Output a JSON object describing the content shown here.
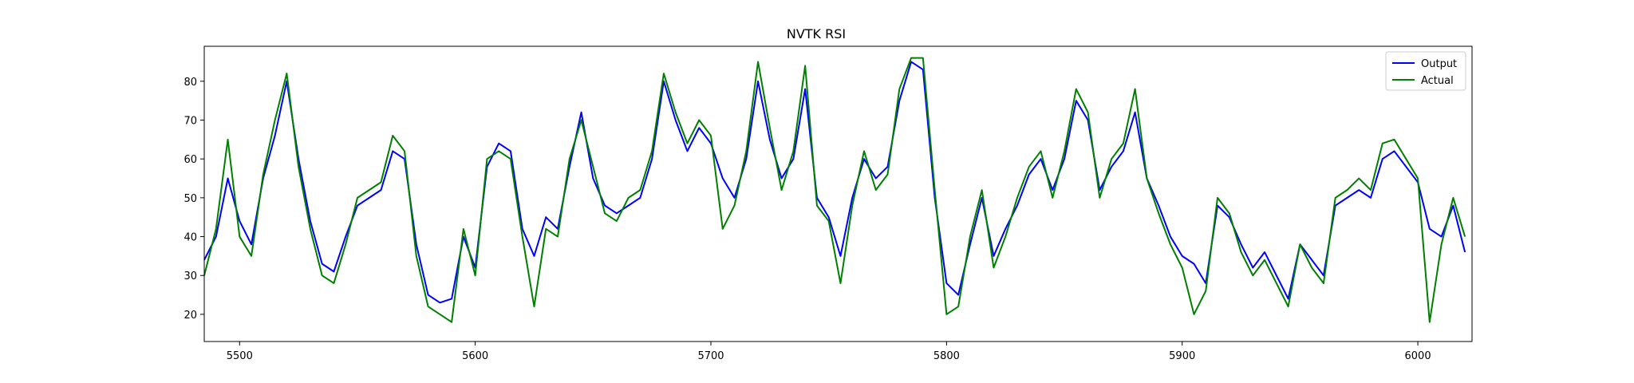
{
  "chart_data": {
    "type": "line",
    "title": "NVTK RSI",
    "xlabel": "",
    "ylabel": "",
    "xlim": [
      5485,
      6023
    ],
    "ylim": [
      13,
      89
    ],
    "xticks": [
      5500,
      5600,
      5700,
      5800,
      5900,
      6000
    ],
    "yticks": [
      20,
      30,
      40,
      50,
      60,
      70,
      80
    ],
    "grid": false,
    "legend_position": "top-right",
    "x": [
      5485,
      5490,
      5495,
      5500,
      5505,
      5510,
      5515,
      5520,
      5525,
      5530,
      5535,
      5540,
      5545,
      5550,
      5555,
      5560,
      5565,
      5570,
      5575,
      5580,
      5585,
      5590,
      5595,
      5600,
      5605,
      5610,
      5615,
      5620,
      5625,
      5630,
      5635,
      5640,
      5645,
      5650,
      5655,
      5660,
      5665,
      5670,
      5675,
      5680,
      5685,
      5690,
      5695,
      5700,
      5705,
      5710,
      5715,
      5720,
      5725,
      5730,
      5735,
      5740,
      5745,
      5750,
      5755,
      5760,
      5765,
      5770,
      5775,
      5780,
      5785,
      5790,
      5795,
      5800,
      5805,
      5810,
      5815,
      5820,
      5825,
      5830,
      5835,
      5840,
      5845,
      5850,
      5855,
      5860,
      5865,
      5870,
      5875,
      5880,
      5885,
      5890,
      5895,
      5900,
      5905,
      5910,
      5915,
      5920,
      5925,
      5930,
      5935,
      5940,
      5945,
      5950,
      5955,
      5960,
      5965,
      5970,
      5975,
      5980,
      5985,
      5990,
      5995,
      6000,
      6005,
      6010,
      6015,
      6020
    ],
    "series": [
      {
        "name": "Output",
        "color": "#0000ff",
        "values": [
          34,
          40,
          55,
          44,
          38,
          55,
          66,
          80,
          60,
          44,
          33,
          31,
          40,
          48,
          50,
          52,
          62,
          60,
          38,
          25,
          23,
          24,
          40,
          32,
          58,
          64,
          62,
          42,
          35,
          45,
          42,
          58,
          72,
          55,
          48,
          46,
          48,
          50,
          60,
          80,
          70,
          62,
          68,
          64,
          55,
          50,
          60,
          80,
          65,
          55,
          60,
          78,
          50,
          45,
          35,
          50,
          60,
          55,
          58,
          75,
          85,
          83,
          50,
          28,
          25,
          38,
          50,
          35,
          42,
          48,
          56,
          60,
          52,
          60,
          75,
          70,
          52,
          58,
          62,
          72,
          55,
          48,
          40,
          35,
          33,
          28,
          48,
          45,
          38,
          32,
          36,
          30,
          24,
          38,
          34,
          30,
          48,
          50,
          52,
          50,
          60,
          62,
          58,
          54,
          42,
          40,
          48,
          36
        ]
      },
      {
        "name": "Actual",
        "color": "#008000",
        "values": [
          30,
          42,
          65,
          40,
          35,
          56,
          70,
          82,
          58,
          42,
          30,
          28,
          38,
          50,
          52,
          54,
          66,
          62,
          35,
          22,
          20,
          18,
          42,
          30,
          60,
          62,
          60,
          40,
          22,
          42,
          40,
          60,
          70,
          58,
          46,
          44,
          50,
          52,
          62,
          82,
          72,
          64,
          70,
          66,
          42,
          48,
          62,
          85,
          68,
          52,
          62,
          84,
          48,
          44,
          28,
          48,
          62,
          52,
          56,
          78,
          86,
          86,
          52,
          20,
          22,
          40,
          52,
          32,
          40,
          50,
          58,
          62,
          50,
          62,
          78,
          72,
          50,
          60,
          64,
          78,
          55,
          46,
          38,
          32,
          20,
          26,
          50,
          46,
          36,
          30,
          34,
          28,
          22,
          38,
          32,
          28,
          50,
          52,
          55,
          52,
          64,
          65,
          60,
          55,
          18,
          38,
          50,
          40
        ]
      }
    ]
  }
}
